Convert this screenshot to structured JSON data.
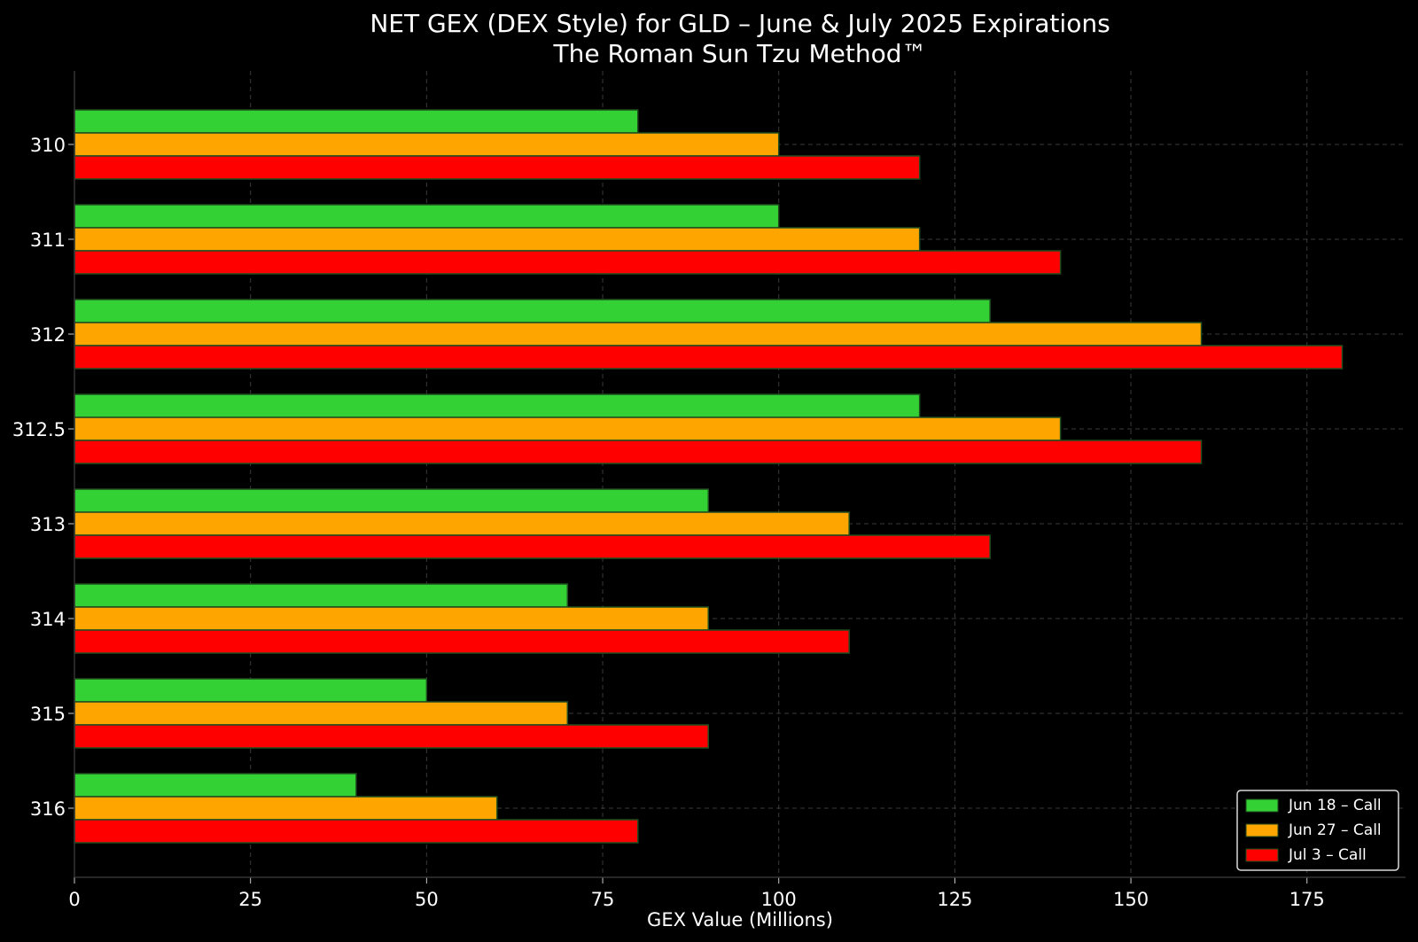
{
  "chart_data": {
    "type": "bar",
    "orientation": "horizontal",
    "title": "NET GEX (DEX Style) for GLD – June & July 2025 Expirations",
    "subtitle": "The Roman Sun Tzu Method™",
    "xlabel": "GEX Value (Millions)",
    "ylabel": "",
    "xlim": [
      0,
      189
    ],
    "x_ticks": [
      0,
      25,
      50,
      75,
      100,
      125,
      150,
      175
    ],
    "categories": [
      "310",
      "311",
      "312",
      "312.5",
      "313",
      "314",
      "315",
      "316"
    ],
    "series": [
      {
        "name": "Jun 18 – Call",
        "color": "#33d133",
        "values": [
          80,
          100,
          130,
          120,
          90,
          70,
          50,
          40
        ]
      },
      {
        "name": "Jun 27 – Call",
        "color": "#ffa500",
        "values": [
          100,
          120,
          160,
          140,
          110,
          90,
          70,
          60
        ]
      },
      {
        "name": "Jul 3 – Call",
        "color": "#ff0000",
        "values": [
          120,
          140,
          180,
          160,
          130,
          110,
          90,
          80
        ]
      }
    ],
    "grid": true,
    "legend_position": "bottom-right",
    "background": "#000000",
    "bar_edge_color": "#1f4d1f"
  }
}
